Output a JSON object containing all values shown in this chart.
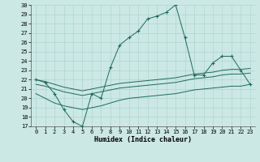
{
  "xlabel": "Humidex (Indice chaleur)",
  "xlim": [
    -0.5,
    23.5
  ],
  "ylim": [
    17,
    30
  ],
  "yticks": [
    17,
    18,
    19,
    20,
    21,
    22,
    23,
    24,
    25,
    26,
    27,
    28,
    29,
    30
  ],
  "xticks": [
    0,
    1,
    2,
    3,
    4,
    5,
    6,
    7,
    8,
    9,
    10,
    11,
    12,
    13,
    14,
    15,
    16,
    17,
    18,
    19,
    20,
    21,
    22,
    23
  ],
  "bg_color": "#cce8e4",
  "grid_color": "#aed4cf",
  "line_color": "#1a6b5a",
  "lines": [
    {
      "x": [
        0,
        1,
        2,
        3,
        4,
        5,
        6,
        7,
        8,
        9,
        10,
        11,
        12,
        13,
        14,
        15,
        16,
        17,
        18,
        19,
        20,
        21,
        22,
        23
      ],
      "y": [
        22.0,
        21.7,
        20.5,
        18.8,
        17.5,
        17.0,
        20.5,
        20.0,
        23.3,
        25.7,
        26.5,
        27.2,
        28.5,
        28.8,
        29.2,
        30.0,
        26.5,
        22.5,
        22.5,
        23.8,
        24.5,
        24.5,
        23.0,
        21.5
      ],
      "marker": "+"
    },
    {
      "x": [
        0,
        1,
        2,
        3,
        4,
        5,
        6,
        7,
        8,
        9,
        10,
        11,
        12,
        13,
        14,
        15,
        16,
        17,
        18,
        19,
        20,
        21,
        22,
        23
      ],
      "y": [
        22.0,
        21.8,
        21.5,
        21.2,
        21.0,
        20.8,
        21.0,
        21.2,
        21.4,
        21.6,
        21.7,
        21.8,
        21.9,
        22.0,
        22.1,
        22.2,
        22.4,
        22.6,
        22.7,
        22.8,
        23.0,
        23.1,
        23.1,
        23.2
      ],
      "marker": null
    },
    {
      "x": [
        0,
        1,
        2,
        3,
        4,
        5,
        6,
        7,
        8,
        9,
        10,
        11,
        12,
        13,
        14,
        15,
        16,
        17,
        18,
        19,
        20,
        21,
        22,
        23
      ],
      "y": [
        21.5,
        21.3,
        21.0,
        20.7,
        20.5,
        20.3,
        20.5,
        20.7,
        20.9,
        21.1,
        21.2,
        21.3,
        21.4,
        21.5,
        21.6,
        21.7,
        21.9,
        22.1,
        22.2,
        22.3,
        22.5,
        22.6,
        22.6,
        22.7
      ],
      "marker": null
    },
    {
      "x": [
        0,
        1,
        2,
        3,
        4,
        5,
        6,
        7,
        8,
        9,
        10,
        11,
        12,
        13,
        14,
        15,
        16,
        17,
        18,
        19,
        20,
        21,
        22,
        23
      ],
      "y": [
        20.5,
        20.0,
        19.5,
        19.2,
        19.0,
        18.8,
        19.0,
        19.2,
        19.5,
        19.8,
        20.0,
        20.1,
        20.2,
        20.3,
        20.4,
        20.5,
        20.7,
        20.9,
        21.0,
        21.1,
        21.2,
        21.3,
        21.3,
        21.5
      ],
      "marker": null
    }
  ]
}
